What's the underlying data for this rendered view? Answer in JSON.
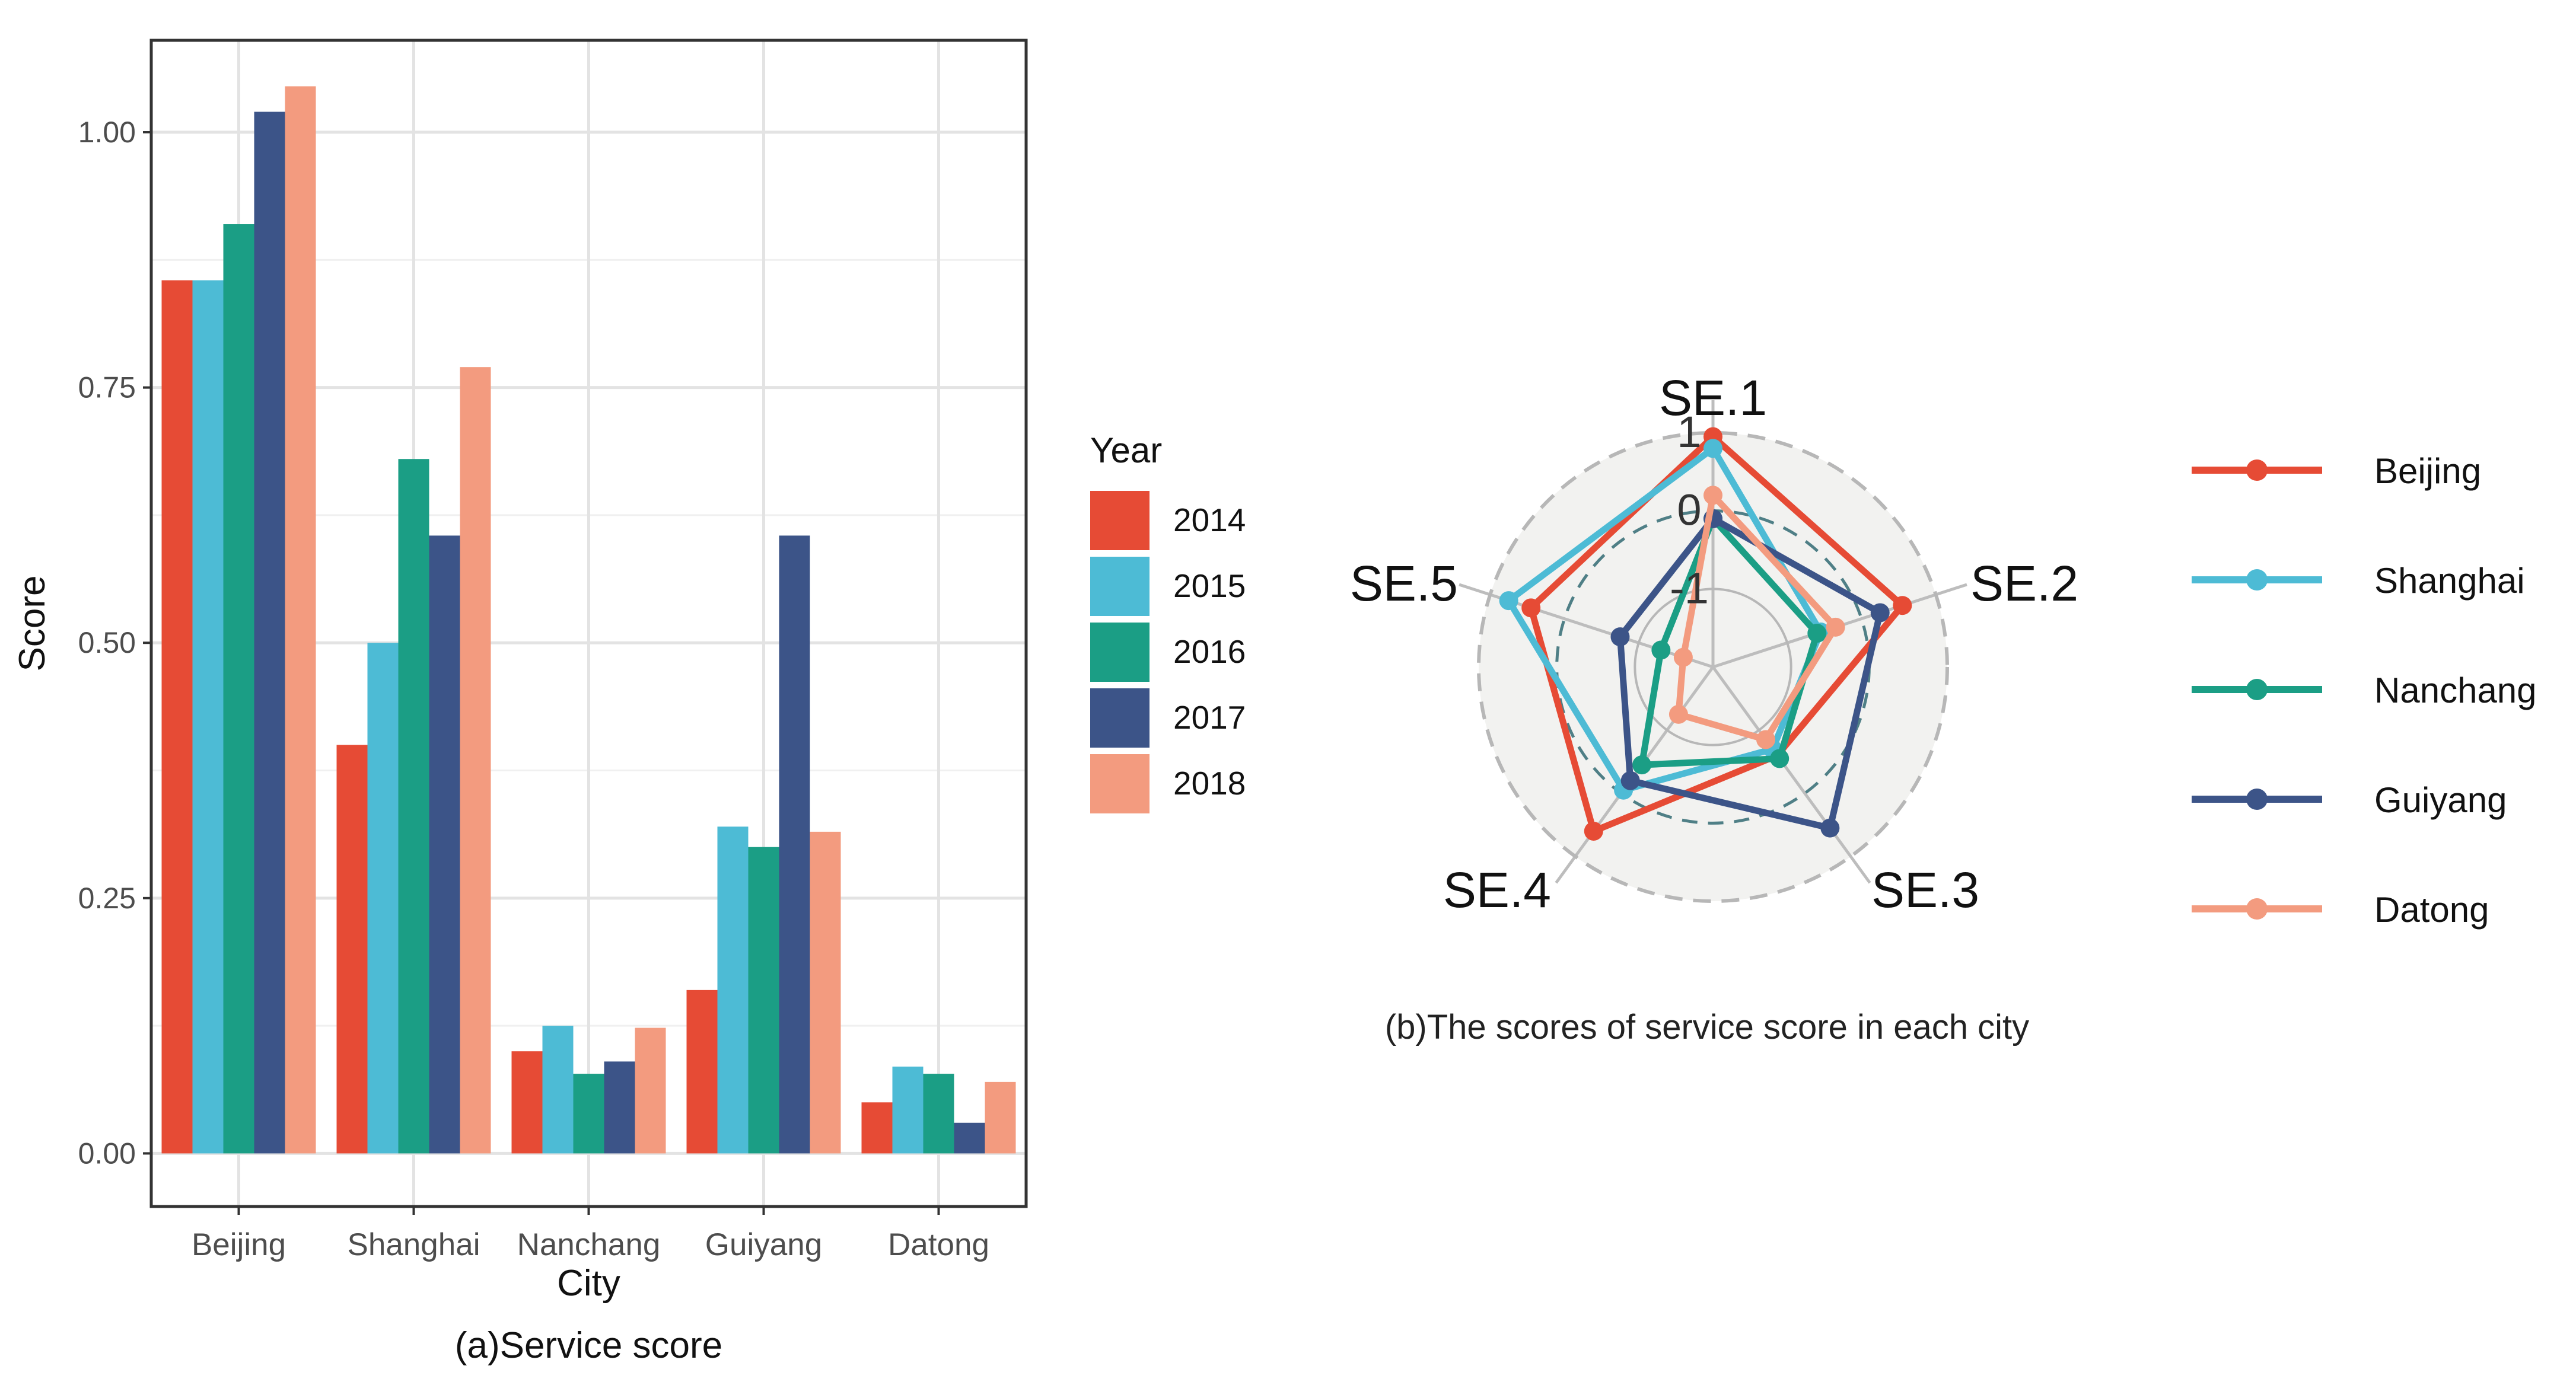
{
  "chart_data": [
    {
      "type": "bar",
      "title": "",
      "caption": "(a)Service score",
      "xlabel": "City",
      "ylabel": "Score",
      "ylim": [
        -0.052,
        1.09
      ],
      "yticks": [
        0.0,
        0.25,
        0.5,
        0.75,
        1.0
      ],
      "ytick_labels": [
        "0.00",
        "0.25",
        "0.50",
        "0.75",
        "1.00"
      ],
      "grid": true,
      "categories": [
        "Beijing",
        "Shanghai",
        "Nanchang",
        "Guiyang",
        "Datong"
      ],
      "legend": {
        "title": "Year",
        "placement": "right"
      },
      "series": [
        {
          "name": "2014",
          "color": "#e64b35",
          "values": [
            0.855,
            0.4,
            0.1,
            0.16,
            0.05
          ]
        },
        {
          "name": "2015",
          "color": "#4dbbd5",
          "values": [
            0.855,
            0.5,
            0.125,
            0.32,
            0.085
          ]
        },
        {
          "name": "2016",
          "color": "#1b9e85",
          "values": [
            0.91,
            0.68,
            0.078,
            0.3,
            0.078
          ]
        },
        {
          "name": "2017",
          "color": "#3c5488",
          "values": [
            1.02,
            0.605,
            0.09,
            0.605,
            0.03
          ]
        },
        {
          "name": "2018",
          "color": "#f39b7f",
          "values": [
            1.045,
            0.77,
            0.123,
            0.315,
            0.07
          ]
        }
      ]
    },
    {
      "type": "radar",
      "caption": "(b)The scores of service score in each city",
      "axes": [
        "SE.1",
        "SE.2",
        "SE.3",
        "SE.4",
        "SE.5"
      ],
      "rlim": [
        -2,
        1
      ],
      "ring_labels": [
        "1",
        "0",
        "-1"
      ],
      "ring_values": [
        1,
        0,
        -1
      ],
      "legend": {
        "placement": "right"
      },
      "series": [
        {
          "name": "Beijing",
          "color": "#e64b35",
          "values": [
            0.95,
            0.55,
            -0.6,
            0.6,
            0.45
          ]
        },
        {
          "name": "Shanghai",
          "color": "#4dbbd5",
          "values": [
            0.8,
            -0.55,
            -0.7,
            -0.05,
            0.75
          ]
        },
        {
          "name": "Nanchang",
          "color": "#1b9e85",
          "values": [
            -0.1,
            -0.6,
            -0.55,
            -0.45,
            -1.3
          ]
        },
        {
          "name": "Guiyang",
          "color": "#3c5488",
          "values": [
            -0.1,
            0.25,
            0.55,
            -0.2,
            -0.75
          ]
        },
        {
          "name": "Datong",
          "color": "#f39b7f",
          "values": [
            0.2,
            -0.35,
            -0.85,
            -1.25,
            -1.6
          ]
        }
      ]
    }
  ]
}
